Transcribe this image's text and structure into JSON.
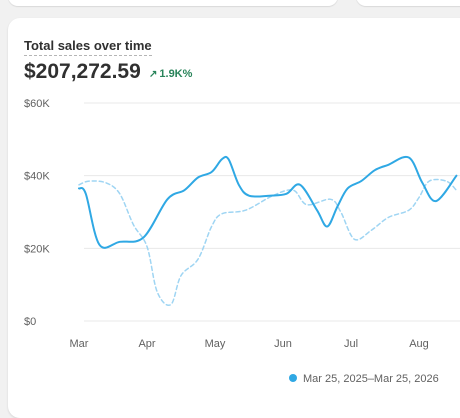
{
  "card": {
    "title": "Total sales over time",
    "total": "$207,272.59",
    "change": "1.9K%"
  },
  "colors": {
    "primary": "#2fa8e4",
    "comparison": "#9fd5f3",
    "grid": "#e8e8e8",
    "positive": "#29845a"
  },
  "chart_data": {
    "type": "line",
    "title": "Total sales over time",
    "categories": [
      "Mar",
      "Apr",
      "May",
      "Jun",
      "Jul",
      "Aug"
    ],
    "y_ticks": [
      "$0",
      "$20K",
      "$40K",
      "$60K"
    ],
    "ylim": [
      0,
      60000
    ],
    "grid": true,
    "legend": "bottom-right",
    "legend_label": "Mar 25, 2025–Mar 25, 2026",
    "series": [
      {
        "name": "Mar 25, 2025–Mar 25, 2026",
        "style": "solid",
        "points": [
          [
            0,
            36500
          ],
          [
            0.1,
            35000
          ],
          [
            0.3,
            21000
          ],
          [
            0.6,
            21800
          ],
          [
            0.95,
            23000
          ],
          [
            1.3,
            33500
          ],
          [
            1.55,
            36000
          ],
          [
            1.75,
            39500
          ],
          [
            1.95,
            41000
          ],
          [
            2.1,
            44500
          ],
          [
            2.2,
            44500
          ],
          [
            2.35,
            37500
          ],
          [
            2.5,
            34500
          ],
          [
            2.8,
            34500
          ],
          [
            3.05,
            35000
          ],
          [
            3.25,
            37500
          ],
          [
            3.5,
            30500
          ],
          [
            3.65,
            26000
          ],
          [
            3.8,
            31500
          ],
          [
            3.95,
            36500
          ],
          [
            4.15,
            38500
          ],
          [
            4.35,
            41500
          ],
          [
            4.55,
            43000
          ],
          [
            4.85,
            45000
          ],
          [
            5.05,
            38000
          ],
          [
            5.25,
            33000
          ],
          [
            5.55,
            40000
          ]
        ]
      },
      {
        "style": "dashed",
        "points": [
          [
            0,
            37500
          ],
          [
            0.15,
            38500
          ],
          [
            0.4,
            38000
          ],
          [
            0.6,
            35000
          ],
          [
            0.8,
            26500
          ],
          [
            1.0,
            20500
          ],
          [
            1.15,
            8000
          ],
          [
            1.35,
            4500
          ],
          [
            1.5,
            12500
          ],
          [
            1.75,
            17000
          ],
          [
            1.95,
            26000
          ],
          [
            2.1,
            29500
          ],
          [
            2.45,
            30500
          ],
          [
            2.85,
            34500
          ],
          [
            3.15,
            36000
          ],
          [
            3.35,
            32000
          ],
          [
            3.7,
            33500
          ],
          [
            3.85,
            30000
          ],
          [
            4.05,
            22500
          ],
          [
            4.3,
            25000
          ],
          [
            4.55,
            28500
          ],
          [
            4.85,
            30500
          ],
          [
            5.0,
            34000
          ],
          [
            5.15,
            38500
          ],
          [
            5.4,
            38500
          ],
          [
            5.55,
            36000
          ]
        ]
      }
    ]
  }
}
